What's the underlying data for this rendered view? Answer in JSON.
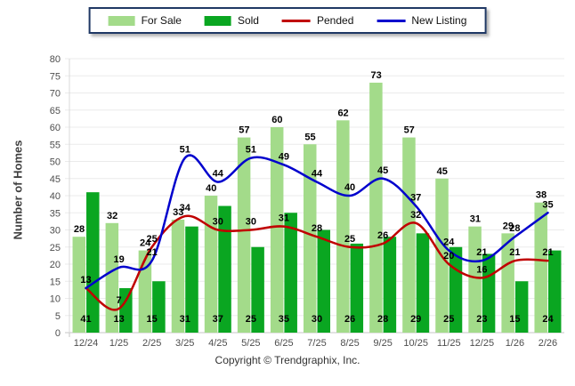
{
  "y_axis_title": "Number of Homes",
  "copyright": "Copyright © Trendgraphix, Inc.",
  "colors": {
    "for_sale": "#A3DB8A",
    "sold": "#0AA621",
    "pended": "#C00000",
    "new_listing": "#0000CD",
    "grid": "#EBEBEB",
    "axis_line": "#C6C6C6",
    "tick_text": "#4D4D4D",
    "data_label": "#000000",
    "legend_border": "#1F3864"
  },
  "chart_data": {
    "type": "bar",
    "subtype": "grouped bars with smooth overlay lines",
    "title": "",
    "xlabel": "",
    "ylabel": "Number of Homes",
    "ylim": [
      0,
      80
    ],
    "ytick_step": 5,
    "grid": true,
    "legend_position": "top-center",
    "categories": [
      "12/24",
      "1/25",
      "2/25",
      "3/25",
      "4/25",
      "5/25",
      "6/25",
      "7/25",
      "8/25",
      "9/25",
      "10/25",
      "11/25",
      "12/25",
      "1/26",
      "2/26"
    ],
    "series": [
      {
        "name": "For Sale",
        "type": "bar",
        "color": "#A3DB8A",
        "values": [
          28,
          32,
          24,
          33,
          40,
          57,
          60,
          55,
          62,
          73,
          57,
          45,
          31,
          29,
          38
        ]
      },
      {
        "name": "Sold",
        "type": "bar",
        "color": "#0AA621",
        "values": [
          41,
          13,
          15,
          31,
          37,
          25,
          35,
          30,
          26,
          28,
          29,
          25,
          23,
          15,
          24
        ]
      },
      {
        "name": "Pended",
        "type": "line",
        "color": "#C00000",
        "values": [
          13,
          7,
          25,
          34,
          30,
          30,
          31,
          28,
          25,
          26,
          32,
          20,
          16,
          21,
          21
        ]
      },
      {
        "name": "New Listing",
        "type": "line",
        "color": "#0000CD",
        "values": [
          13,
          19,
          21,
          51,
          44,
          51,
          49,
          44,
          40,
          45,
          37,
          24,
          21,
          28,
          35
        ]
      }
    ]
  }
}
